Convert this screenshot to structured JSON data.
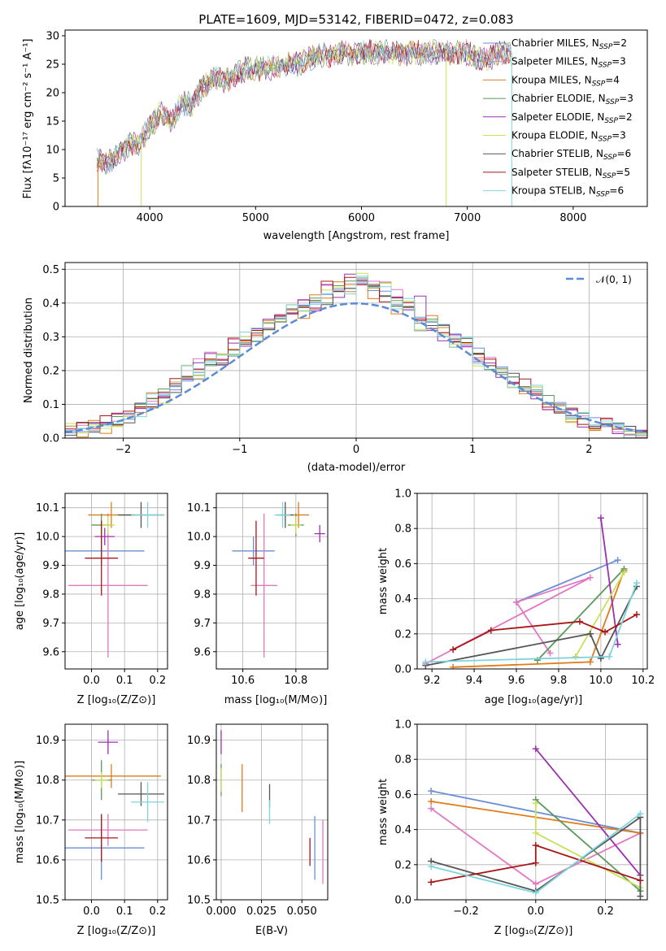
{
  "figure_title": "PLATE=1609, MJD=53142, FIBERID=0472, z=0.083",
  "series": [
    {
      "label": "Chabrier MILES, N",
      "sub": "SSP",
      "eq": "=2",
      "color": "#6a8fd6"
    },
    {
      "label": "Salpeter MILES, N",
      "sub": "SSP",
      "eq": "=3",
      "color": "#e377c2"
    },
    {
      "label": "Kroupa MILES, N",
      "sub": "SSP",
      "eq": "=4",
      "color": "#e07b1a"
    },
    {
      "label": "Chabrier ELODIE, N",
      "sub": "SSP",
      "eq": "=3",
      "color": "#5a9a5a"
    },
    {
      "label": "Salpeter ELODIE, N",
      "sub": "SSP",
      "eq": "=2",
      "color": "#9b30b0"
    },
    {
      "label": "Kroupa ELODIE, N",
      "sub": "SSP",
      "eq": "=3",
      "color": "#c8e05a"
    },
    {
      "label": "Chabrier STELIB, N",
      "sub": "SSP",
      "eq": "=6",
      "color": "#555555"
    },
    {
      "label": "Salpeter STELIB, N",
      "sub": "SSP",
      "eq": "=5",
      "color": "#a81818"
    },
    {
      "label": "Kroupa STELIB, N",
      "sub": "SSP",
      "eq": "=6",
      "color": "#7fd4dc"
    }
  ],
  "panels": {
    "spectrum": {
      "xlabel": "wavelength [Angstrom, rest frame]",
      "ylabel": "Flux [fλ10⁻¹⁷ erg cm⁻² s⁻¹ A⁻¹]",
      "xticks": [
        "4000",
        "5000",
        "6000",
        "7000",
        "8000"
      ],
      "yticks": [
        "0",
        "5",
        "10",
        "15",
        "20",
        "25",
        "30"
      ]
    },
    "residuals": {
      "xlabel": "(data-model)/error",
      "ylabel": "Normed distribution",
      "xticks": [
        "−2",
        "−1",
        "0",
        "1",
        "2"
      ],
      "yticks": [
        "0.0",
        "0.1",
        "0.2",
        "0.3",
        "0.4",
        "0.5"
      ],
      "legend_label": "𝒩(0, 1)"
    },
    "z_age": {
      "xlabel": "Z [log₁₀(Z/Z⊙)]",
      "ylabel": "age  [log₁₀(age/yr)]",
      "xticks": [
        "0.0",
        "0.1",
        "0.2"
      ],
      "yticks": [
        "9.6",
        "9.7",
        "9.8",
        "9.9",
        "10.0",
        "10.1"
      ]
    },
    "mass_age": {
      "xlabel": "mass [log₁₀(M/M⊙)]",
      "xticks": [
        "10.6",
        "10.8"
      ],
      "yticks": [
        "9.6",
        "9.7",
        "9.8",
        "9.9",
        "10.0",
        "10.1"
      ]
    },
    "age_weight": {
      "xlabel": "age  [log₁₀(age/yr)]",
      "ylabel": "mass weight",
      "xticks": [
        "9.2",
        "9.4",
        "9.6",
        "9.8",
        "10.0",
        "10.2"
      ],
      "yticks": [
        "0.0",
        "0.2",
        "0.4",
        "0.6",
        "0.8",
        "1.0"
      ]
    },
    "z_mass": {
      "xlabel": "Z [log₁₀(Z/Z⊙)]",
      "ylabel": "mass [log₁₀(M/M⊙)]",
      "xticks": [
        "0.0",
        "0.1",
        "0.2"
      ],
      "yticks": [
        "10.5",
        "10.6",
        "10.7",
        "10.8",
        "10.9"
      ]
    },
    "ebv_mass": {
      "xlabel": "E(B-V)",
      "xticks": [
        "0.000",
        "0.025",
        "0.050"
      ],
      "yticks": [
        "10.5",
        "10.6",
        "10.7",
        "10.8",
        "10.9"
      ]
    },
    "z_weight": {
      "xlabel": "Z [log₁₀(Z/Z⊙)]",
      "ylabel": "mass weight",
      "xticks": [
        "−0.2",
        "0.0",
        "0.2"
      ],
      "yticks": [
        "0.0",
        "0.2",
        "0.4",
        "0.6",
        "0.8",
        "1.0"
      ]
    }
  },
  "chart_data": [
    {
      "type": "line",
      "title": "PLATE=1609, MJD=53142, FIBERID=0472, z=0.083",
      "xlabel": "wavelength [Angstrom, rest frame]",
      "ylabel": "Flux [fλ10⁻¹⁷ erg cm⁻² s⁻¹ A⁻¹]",
      "xlim": [
        3200,
        8700
      ],
      "ylim": [
        0,
        31
      ],
      "x": [
        3500,
        3600,
        3700,
        3800,
        3900,
        4000,
        4100,
        4200,
        4300,
        4400,
        4500,
        4600,
        4700,
        4800,
        4900,
        5000,
        5100,
        5200,
        5300,
        5400,
        5500,
        5600,
        5700,
        5800,
        5900,
        6000,
        6100,
        6200,
        6300,
        6400,
        6500,
        6600,
        6700,
        6800,
        6900,
        7000,
        7100,
        7200,
        7300,
        7400
      ],
      "y": [
        8,
        7.5,
        9,
        11,
        11,
        14,
        16.5,
        15,
        18,
        18,
        21,
        22.5,
        22,
        23,
        24,
        24.5,
        24,
        24.5,
        25,
        25,
        26,
        26.5,
        26.5,
        27,
        27,
        27,
        27,
        27,
        27,
        27,
        27,
        27,
        27,
        27,
        27,
        27,
        26,
        26,
        27,
        27
      ],
      "legend": "top-right"
    },
    {
      "type": "bar",
      "xlabel": "(data-model)/error",
      "ylabel": "Normed distribution",
      "xlim": [
        -2.5,
        2.5
      ],
      "ylim": [
        0,
        0.52
      ],
      "bin_edges": [
        -2.5,
        -2.4,
        -2.3,
        -2.2,
        -2.1,
        -2.0,
        -1.9,
        -1.8,
        -1.7,
        -1.6,
        -1.5,
        -1.4,
        -1.3,
        -1.2,
        -1.1,
        -1.0,
        -0.9,
        -0.8,
        -0.7,
        -0.6,
        -0.5,
        -0.4,
        -0.3,
        -0.2,
        -0.1,
        0.0,
        0.1,
        0.2,
        0.3,
        0.4,
        0.5,
        0.6,
        0.7,
        0.8,
        0.9,
        1.0,
        1.1,
        1.2,
        1.3,
        1.4,
        1.5,
        1.6,
        1.7,
        1.8,
        1.9,
        2.0,
        2.1,
        2.2,
        2.3,
        2.4,
        2.5
      ],
      "series": [
        {
          "values": [
            0.02,
            0.03,
            0.03,
            0.04,
            0.05,
            0.06,
            0.09,
            0.1,
            0.13,
            0.15,
            0.18,
            0.2,
            0.22,
            0.23,
            0.26,
            0.28,
            0.3,
            0.33,
            0.35,
            0.37,
            0.38,
            0.4,
            0.41,
            0.44,
            0.46,
            0.46,
            0.44,
            0.43,
            0.4,
            0.38,
            0.35,
            0.34,
            0.32,
            0.3,
            0.28,
            0.25,
            0.22,
            0.2,
            0.18,
            0.15,
            0.13,
            0.11,
            0.09,
            0.07,
            0.06,
            0.05,
            0.04,
            0.03,
            0.02,
            0.02
          ]
        },
        {
          "values": [
            0.01,
            0.04,
            0.03,
            0.05,
            0.06,
            0.08,
            0.1,
            0.11,
            0.13,
            0.17,
            0.17,
            0.22,
            0.24,
            0.23,
            0.29,
            0.28,
            0.32,
            0.34,
            0.36,
            0.38,
            0.4,
            0.39,
            0.45,
            0.43,
            0.47,
            0.47,
            0.45,
            0.41,
            0.43,
            0.39,
            0.36,
            0.33,
            0.3,
            0.29,
            0.27,
            0.24,
            0.23,
            0.19,
            0.17,
            0.16,
            0.12,
            0.1,
            0.09,
            0.08,
            0.05,
            0.04,
            0.05,
            0.02,
            0.01,
            0.02
          ]
        },
        {
          "values": [
            0.03,
            0.02,
            0.04,
            0.03,
            0.05,
            0.07,
            0.08,
            0.12,
            0.12,
            0.16,
            0.2,
            0.19,
            0.24,
            0.26,
            0.25,
            0.3,
            0.31,
            0.35,
            0.34,
            0.39,
            0.37,
            0.41,
            0.43,
            0.45,
            0.44,
            0.48,
            0.43,
            0.45,
            0.38,
            0.4,
            0.33,
            0.35,
            0.31,
            0.28,
            0.29,
            0.23,
            0.21,
            0.21,
            0.16,
            0.14,
            0.14,
            0.09,
            0.1,
            0.06,
            0.07,
            0.03,
            0.04,
            0.03,
            0.01,
            0.01
          ]
        }
      ]
    },
    {
      "type": "scatter",
      "xlabel": "Z [log₁₀(Z/Z⊙)]",
      "ylabel": "age  [log₁₀(age/yr)]",
      "xlim": [
        -0.08,
        0.23
      ],
      "ylim": [
        9.54,
        10.15
      ],
      "points": [
        {
          "series": 0,
          "x": 0.03,
          "y": 9.95,
          "xerr": 0.13,
          "yerr": 0.05
        },
        {
          "series": 1,
          "x": 0.05,
          "y": 9.83,
          "xerr": 0.12,
          "yerr": 0.25
        },
        {
          "series": 2,
          "x": 0.06,
          "y": 10.075,
          "xerr": 0.07,
          "yerr": 0.045
        },
        {
          "series": 3,
          "x": 0.03,
          "y": 10.04,
          "xerr": 0.03,
          "yerr": 0.04
        },
        {
          "series": 4,
          "x": 0.04,
          "y": 10.0,
          "xerr": 0.03,
          "yerr": 0.03
        },
        {
          "series": 5,
          "x": 0.05,
          "y": 10.04,
          "xerr": 0.02,
          "yerr": 0.03
        },
        {
          "series": 6,
          "x": 0.15,
          "y": 10.075,
          "xerr": 0.07,
          "yerr": 0.045
        },
        {
          "series": 7,
          "x": 0.03,
          "y": 9.925,
          "xerr": 0.05,
          "yerr": 0.13
        },
        {
          "series": 8,
          "x": 0.17,
          "y": 10.075,
          "xerr": 0.05,
          "yerr": 0.045
        }
      ]
    },
    {
      "type": "scatter",
      "xlabel": "mass [log₁₀(M/M⊙)]",
      "xlim": [
        10.5,
        10.92
      ],
      "ylim": [
        9.54,
        10.15
      ],
      "points": [
        {
          "series": 0,
          "x": 10.64,
          "y": 9.95,
          "xerr": 0.08,
          "yerr": 0.05
        },
        {
          "series": 1,
          "x": 10.68,
          "y": 9.83,
          "xerr": 0.05,
          "yerr": 0.25
        },
        {
          "series": 2,
          "x": 10.81,
          "y": 10.075,
          "xerr": 0.04,
          "yerr": 0.045
        },
        {
          "series": 3,
          "x": 10.8,
          "y": 10.04,
          "xerr": 0.03,
          "yerr": 0.04
        },
        {
          "series": 4,
          "x": 10.89,
          "y": 10.01,
          "xerr": 0.02,
          "yerr": 0.03
        },
        {
          "series": 5,
          "x": 10.8,
          "y": 10.04,
          "xerr": 0.02,
          "yerr": 0.03
        },
        {
          "series": 6,
          "x": 10.76,
          "y": 10.075,
          "xerr": 0.03,
          "yerr": 0.045
        },
        {
          "series": 7,
          "x": 10.65,
          "y": 9.925,
          "xerr": 0.03,
          "yerr": 0.13
        },
        {
          "series": 8,
          "x": 10.75,
          "y": 10.075,
          "xerr": 0.03,
          "yerr": 0.045
        }
      ]
    },
    {
      "type": "line",
      "xlabel": "age  [log₁₀(age/yr)]",
      "ylabel": "mass weight",
      "xlim": [
        9.13,
        10.22
      ],
      "ylim": [
        0,
        1.0
      ],
      "series": [
        {
          "series": 0,
          "x": [
            9.6,
            10.08
          ],
          "y": [
            0.38,
            0.62
          ]
        },
        {
          "series": 1,
          "x": [
            9.17,
            9.95,
            9.6,
            9.76
          ],
          "y": [
            0.03,
            0.52,
            0.38,
            0.09
          ]
        },
        {
          "series": 2,
          "x": [
            9.3,
            9.95,
            10.11
          ],
          "y": [
            0.01,
            0.04,
            0.56
          ]
        },
        {
          "series": 3,
          "x": [
            9.7,
            10.11
          ],
          "y": [
            0.05,
            0.57
          ]
        },
        {
          "series": 4,
          "x": [
            10.0,
            10.08
          ],
          "y": [
            0.86,
            0.14
          ]
        },
        {
          "series": 5,
          "x": [
            9.88,
            10.11
          ],
          "y": [
            0.07,
            0.55
          ]
        },
        {
          "series": 6,
          "x": [
            9.17,
            9.95,
            10.0,
            10.17
          ],
          "y": [
            0.02,
            0.2,
            0.06,
            0.47
          ]
        },
        {
          "series": 7,
          "x": [
            9.3,
            9.48,
            9.9,
            10.02,
            10.17
          ],
          "y": [
            0.11,
            0.22,
            0.27,
            0.21,
            0.31
          ]
        },
        {
          "series": 8,
          "x": [
            9.17,
            10.04,
            10.17
          ],
          "y": [
            0.04,
            0.07,
            0.49
          ]
        }
      ]
    },
    {
      "type": "scatter",
      "xlabel": "Z [log₁₀(Z/Z⊙)]",
      "ylabel": "mass [log₁₀(M/M⊙)]",
      "xlim": [
        -0.08,
        0.23
      ],
      "ylim": [
        10.5,
        10.94
      ],
      "points": [
        {
          "series": 0,
          "x": 0.03,
          "y": 10.63,
          "xerr": 0.13,
          "yerr": 0.08
        },
        {
          "series": 1,
          "x": 0.05,
          "y": 10.675,
          "xerr": 0.12,
          "yerr": 0.04
        },
        {
          "series": 2,
          "x": 0.06,
          "y": 10.81,
          "xerr": 0.15,
          "yerr": 0.03
        },
        {
          "series": 3,
          "x": 0.03,
          "y": 10.8,
          "xerr": 0.03,
          "yerr": 0.05
        },
        {
          "series": 4,
          "x": 0.05,
          "y": 10.895,
          "xerr": 0.03,
          "yerr": 0.03
        },
        {
          "series": 5,
          "x": 0.03,
          "y": 10.8,
          "xerr": 0.02,
          "yerr": 0.02
        },
        {
          "series": 6,
          "x": 0.15,
          "y": 10.765,
          "xerr": 0.07,
          "yerr": 0.03
        },
        {
          "series": 7,
          "x": 0.03,
          "y": 10.655,
          "xerr": 0.05,
          "yerr": 0.06
        },
        {
          "series": 8,
          "x": 0.17,
          "y": 10.745,
          "xerr": 0.05,
          "yerr": 0.05
        }
      ]
    },
    {
      "type": "scatter",
      "xlabel": "E(B-V)",
      "xlim": [
        -0.003,
        0.066
      ],
      "ylim": [
        10.5,
        10.94
      ],
      "points": [
        {
          "series": 0,
          "x": 0.058,
          "y": 10.63,
          "yerr": 0.08
        },
        {
          "series": 1,
          "x": 0.063,
          "y": 10.62,
          "yerr": 0.08
        },
        {
          "series": 2,
          "x": 0.013,
          "y": 10.78,
          "yerr": 0.06
        },
        {
          "series": 3,
          "x": 0.0,
          "y": 10.8,
          "yerr": 0.04
        },
        {
          "series": 4,
          "x": 0.0,
          "y": 10.895,
          "yerr": 0.03
        },
        {
          "series": 5,
          "x": 0.0,
          "y": 10.8,
          "yerr": 0.03
        },
        {
          "series": 6,
          "x": 0.03,
          "y": 10.76,
          "yerr": 0.03
        },
        {
          "series": 7,
          "x": 0.055,
          "y": 10.62,
          "yerr": 0.035
        },
        {
          "series": 8,
          "x": 0.03,
          "y": 10.72,
          "yerr": 0.03
        }
      ]
    },
    {
      "type": "line",
      "xlabel": "Z [log₁₀(Z/Z⊙)]",
      "ylabel": "mass weight",
      "xlim": [
        -0.34,
        0.32
      ],
      "ylim": [
        0,
        1.0
      ],
      "series": [
        {
          "series": 0,
          "x": [
            -0.3,
            0.3
          ],
          "y": [
            0.62,
            0.38
          ]
        },
        {
          "series": 1,
          "x": [
            -0.3,
            0.0,
            0.3
          ],
          "y": [
            0.52,
            0.09,
            0.38
          ]
        },
        {
          "series": 2,
          "x": [
            -0.3,
            0.3
          ],
          "y": [
            0.56,
            0.38
          ]
        },
        {
          "series": 3,
          "x": [
            0.0,
            0.3
          ],
          "y": [
            0.57,
            0.05
          ]
        },
        {
          "series": 4,
          "x": [
            0.0,
            0.3
          ],
          "y": [
            0.86,
            0.14
          ]
        },
        {
          "series": 5,
          "x": [
            0.0,
            0.0,
            0.3
          ],
          "y": [
            0.55,
            0.38,
            0.07
          ]
        },
        {
          "series": 6,
          "x": [
            -0.3,
            0.0,
            0.3,
            0.3
          ],
          "y": [
            0.22,
            0.05,
            0.47,
            0.02
          ]
        },
        {
          "series": 7,
          "x": [
            -0.3,
            0.0,
            0.0,
            0.3
          ],
          "y": [
            0.1,
            0.21,
            0.31,
            0.11
          ]
        },
        {
          "series": 8,
          "x": [
            -0.3,
            0.0,
            0.3
          ],
          "y": [
            0.19,
            0.04,
            0.49
          ]
        }
      ]
    }
  ]
}
